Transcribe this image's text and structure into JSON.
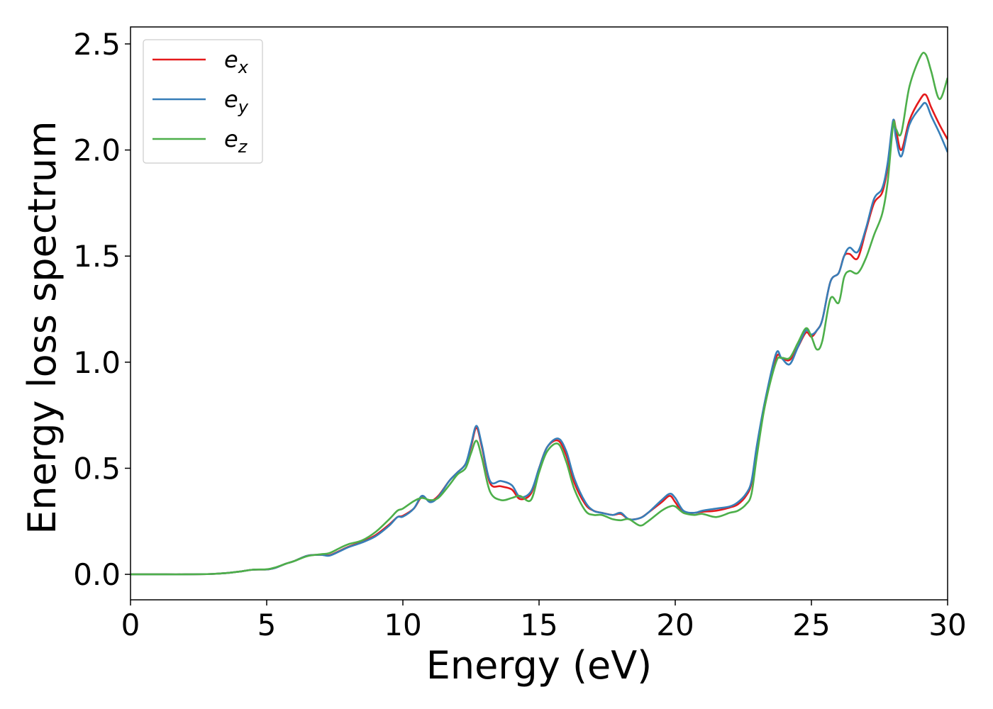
{
  "chart_data": {
    "type": "line",
    "title": "",
    "xlabel": "Energy (eV)",
    "ylabel": "Energy loss spectrum",
    "xlim": [
      0,
      30
    ],
    "ylim": [
      -0.12,
      2.58
    ],
    "xticks": [
      0,
      5,
      10,
      15,
      20,
      25,
      30
    ],
    "xtick_labels": [
      "0",
      "5",
      "10",
      "15",
      "20",
      "25",
      "30"
    ],
    "yticks": [
      0.0,
      0.5,
      1.0,
      1.5,
      2.0,
      2.5
    ],
    "ytick_labels": [
      "0.0",
      "0.5",
      "1.0",
      "1.5",
      "2.0",
      "2.5"
    ],
    "grid": false,
    "legend_position": "top-left",
    "series": [
      {
        "name": "e_x",
        "label_base": "e",
        "label_sub": "x",
        "color": "#e41a1c",
        "x": [
          0,
          1,
          2,
          3,
          3.5,
          4,
          4.5,
          5,
          5.3,
          5.7,
          6,
          6.5,
          7,
          7.3,
          7.7,
          8,
          8.5,
          9,
          9.5,
          9.8,
          10,
          10.4,
          10.7,
          11,
          11.3,
          11.7,
          12,
          12.3,
          12.5,
          12.7,
          12.9,
          13.2,
          13.6,
          14,
          14.3,
          14.7,
          15,
          15.3,
          15.7,
          16,
          16.3,
          16.7,
          17,
          17.3,
          17.7,
          18,
          18.3,
          18.7,
          19,
          19.5,
          19.8,
          20,
          20.3,
          20.7,
          21,
          21.5,
          22,
          22.3,
          22.6,
          22.8,
          23,
          23.3,
          23.7,
          23.9,
          24.2,
          24.5,
          24.8,
          25,
          25.2,
          25.4,
          25.7,
          26,
          26.2,
          26.4,
          26.7,
          27,
          27.3,
          27.6,
          27.8,
          28,
          28.1,
          28.3,
          28.6,
          29,
          29.2,
          29.4,
          29.7,
          30
        ],
        "y": [
          0,
          0,
          0,
          0.002,
          0.006,
          0.013,
          0.022,
          0.023,
          0.03,
          0.05,
          0.062,
          0.088,
          0.092,
          0.09,
          0.112,
          0.13,
          0.153,
          0.185,
          0.235,
          0.27,
          0.276,
          0.31,
          0.365,
          0.345,
          0.37,
          0.44,
          0.48,
          0.52,
          0.6,
          0.69,
          0.6,
          0.43,
          0.415,
          0.4,
          0.355,
          0.38,
          0.5,
          0.6,
          0.63,
          0.56,
          0.43,
          0.33,
          0.3,
          0.29,
          0.28,
          0.285,
          0.26,
          0.265,
          0.29,
          0.34,
          0.37,
          0.34,
          0.29,
          0.29,
          0.295,
          0.3,
          0.315,
          0.33,
          0.37,
          0.43,
          0.6,
          0.8,
          1.02,
          1.02,
          1.01,
          1.07,
          1.14,
          1.12,
          1.15,
          1.2,
          1.38,
          1.42,
          1.5,
          1.51,
          1.49,
          1.62,
          1.75,
          1.8,
          1.92,
          2.13,
          2.1,
          2.0,
          2.14,
          2.24,
          2.26,
          2.2,
          2.12,
          2.05
        ]
      },
      {
        "name": "e_y",
        "label_base": "e",
        "label_sub": "y",
        "color": "#377eb8",
        "x": [
          0,
          1,
          2,
          3,
          3.5,
          4,
          4.5,
          5,
          5.3,
          5.7,
          6,
          6.5,
          7,
          7.3,
          7.7,
          8,
          8.5,
          9,
          9.5,
          9.8,
          10,
          10.4,
          10.7,
          11,
          11.3,
          11.7,
          12,
          12.3,
          12.5,
          12.7,
          12.9,
          13.2,
          13.6,
          14,
          14.3,
          14.7,
          15,
          15.3,
          15.7,
          16,
          16.3,
          16.7,
          17,
          17.3,
          17.7,
          18,
          18.3,
          18.7,
          19,
          19.5,
          19.8,
          20,
          20.3,
          20.7,
          21,
          21.5,
          22,
          22.3,
          22.6,
          22.8,
          23,
          23.3,
          23.7,
          23.9,
          24.2,
          24.5,
          24.8,
          25,
          25.2,
          25.4,
          25.7,
          26,
          26.2,
          26.4,
          26.7,
          27,
          27.3,
          27.6,
          27.8,
          28,
          28.1,
          28.3,
          28.6,
          29,
          29.2,
          29.4,
          29.7,
          30
        ],
        "y": [
          0,
          0,
          0,
          0.002,
          0.006,
          0.013,
          0.022,
          0.023,
          0.03,
          0.05,
          0.062,
          0.088,
          0.092,
          0.088,
          0.11,
          0.128,
          0.15,
          0.18,
          0.23,
          0.27,
          0.272,
          0.31,
          0.37,
          0.34,
          0.365,
          0.44,
          0.48,
          0.52,
          0.61,
          0.7,
          0.61,
          0.44,
          0.44,
          0.42,
          0.365,
          0.39,
          0.5,
          0.6,
          0.64,
          0.58,
          0.45,
          0.34,
          0.3,
          0.29,
          0.28,
          0.29,
          0.26,
          0.265,
          0.29,
          0.35,
          0.38,
          0.36,
          0.3,
          0.29,
          0.3,
          0.31,
          0.32,
          0.34,
          0.38,
          0.44,
          0.61,
          0.82,
          1.04,
          1.02,
          0.99,
          1.07,
          1.15,
          1.13,
          1.15,
          1.2,
          1.38,
          1.42,
          1.5,
          1.54,
          1.52,
          1.63,
          1.77,
          1.82,
          1.94,
          2.14,
          2.06,
          1.97,
          2.12,
          2.2,
          2.22,
          2.16,
          2.08,
          1.99
        ]
      },
      {
        "name": "e_z",
        "label_base": "e",
        "label_sub": "z",
        "color": "#4daf4a",
        "x": [
          0,
          1,
          2,
          3,
          3.5,
          4,
          4.5,
          5,
          5.3,
          5.7,
          6,
          6.5,
          7,
          7.3,
          7.7,
          8,
          8.5,
          9,
          9.5,
          9.8,
          10,
          10.4,
          10.7,
          11,
          11.3,
          11.7,
          12,
          12.3,
          12.5,
          12.7,
          12.9,
          13.2,
          13.6,
          14,
          14.3,
          14.7,
          15,
          15.3,
          15.7,
          16,
          16.3,
          16.7,
          17,
          17.3,
          17.7,
          18,
          18.3,
          18.7,
          19,
          19.5,
          19.8,
          20,
          20.3,
          20.7,
          21,
          21.5,
          22,
          22.3,
          22.6,
          22.8,
          23,
          23.3,
          23.7,
          23.9,
          24.2,
          24.5,
          24.8,
          25,
          25.2,
          25.4,
          25.7,
          26,
          26.2,
          26.4,
          26.7,
          27,
          27.3,
          27.6,
          27.8,
          28,
          28.1,
          28.3,
          28.6,
          29,
          29.2,
          29.4,
          29.7,
          30
        ],
        "y": [
          0,
          0,
          0,
          0.002,
          0.006,
          0.013,
          0.022,
          0.024,
          0.032,
          0.05,
          0.062,
          0.086,
          0.095,
          0.1,
          0.125,
          0.142,
          0.16,
          0.2,
          0.26,
          0.3,
          0.31,
          0.345,
          0.36,
          0.35,
          0.36,
          0.42,
          0.47,
          0.5,
          0.57,
          0.63,
          0.55,
          0.39,
          0.35,
          0.36,
          0.37,
          0.35,
          0.48,
          0.58,
          0.615,
          0.53,
          0.4,
          0.3,
          0.28,
          0.28,
          0.26,
          0.255,
          0.26,
          0.23,
          0.25,
          0.3,
          0.32,
          0.32,
          0.29,
          0.28,
          0.285,
          0.27,
          0.29,
          0.3,
          0.33,
          0.38,
          0.56,
          0.8,
          1.0,
          1.02,
          1.02,
          1.09,
          1.16,
          1.12,
          1.06,
          1.1,
          1.3,
          1.28,
          1.4,
          1.43,
          1.42,
          1.49,
          1.6,
          1.7,
          1.85,
          2.12,
          2.1,
          2.08,
          2.3,
          2.44,
          2.45,
          2.37,
          2.24,
          2.34
        ]
      }
    ]
  }
}
